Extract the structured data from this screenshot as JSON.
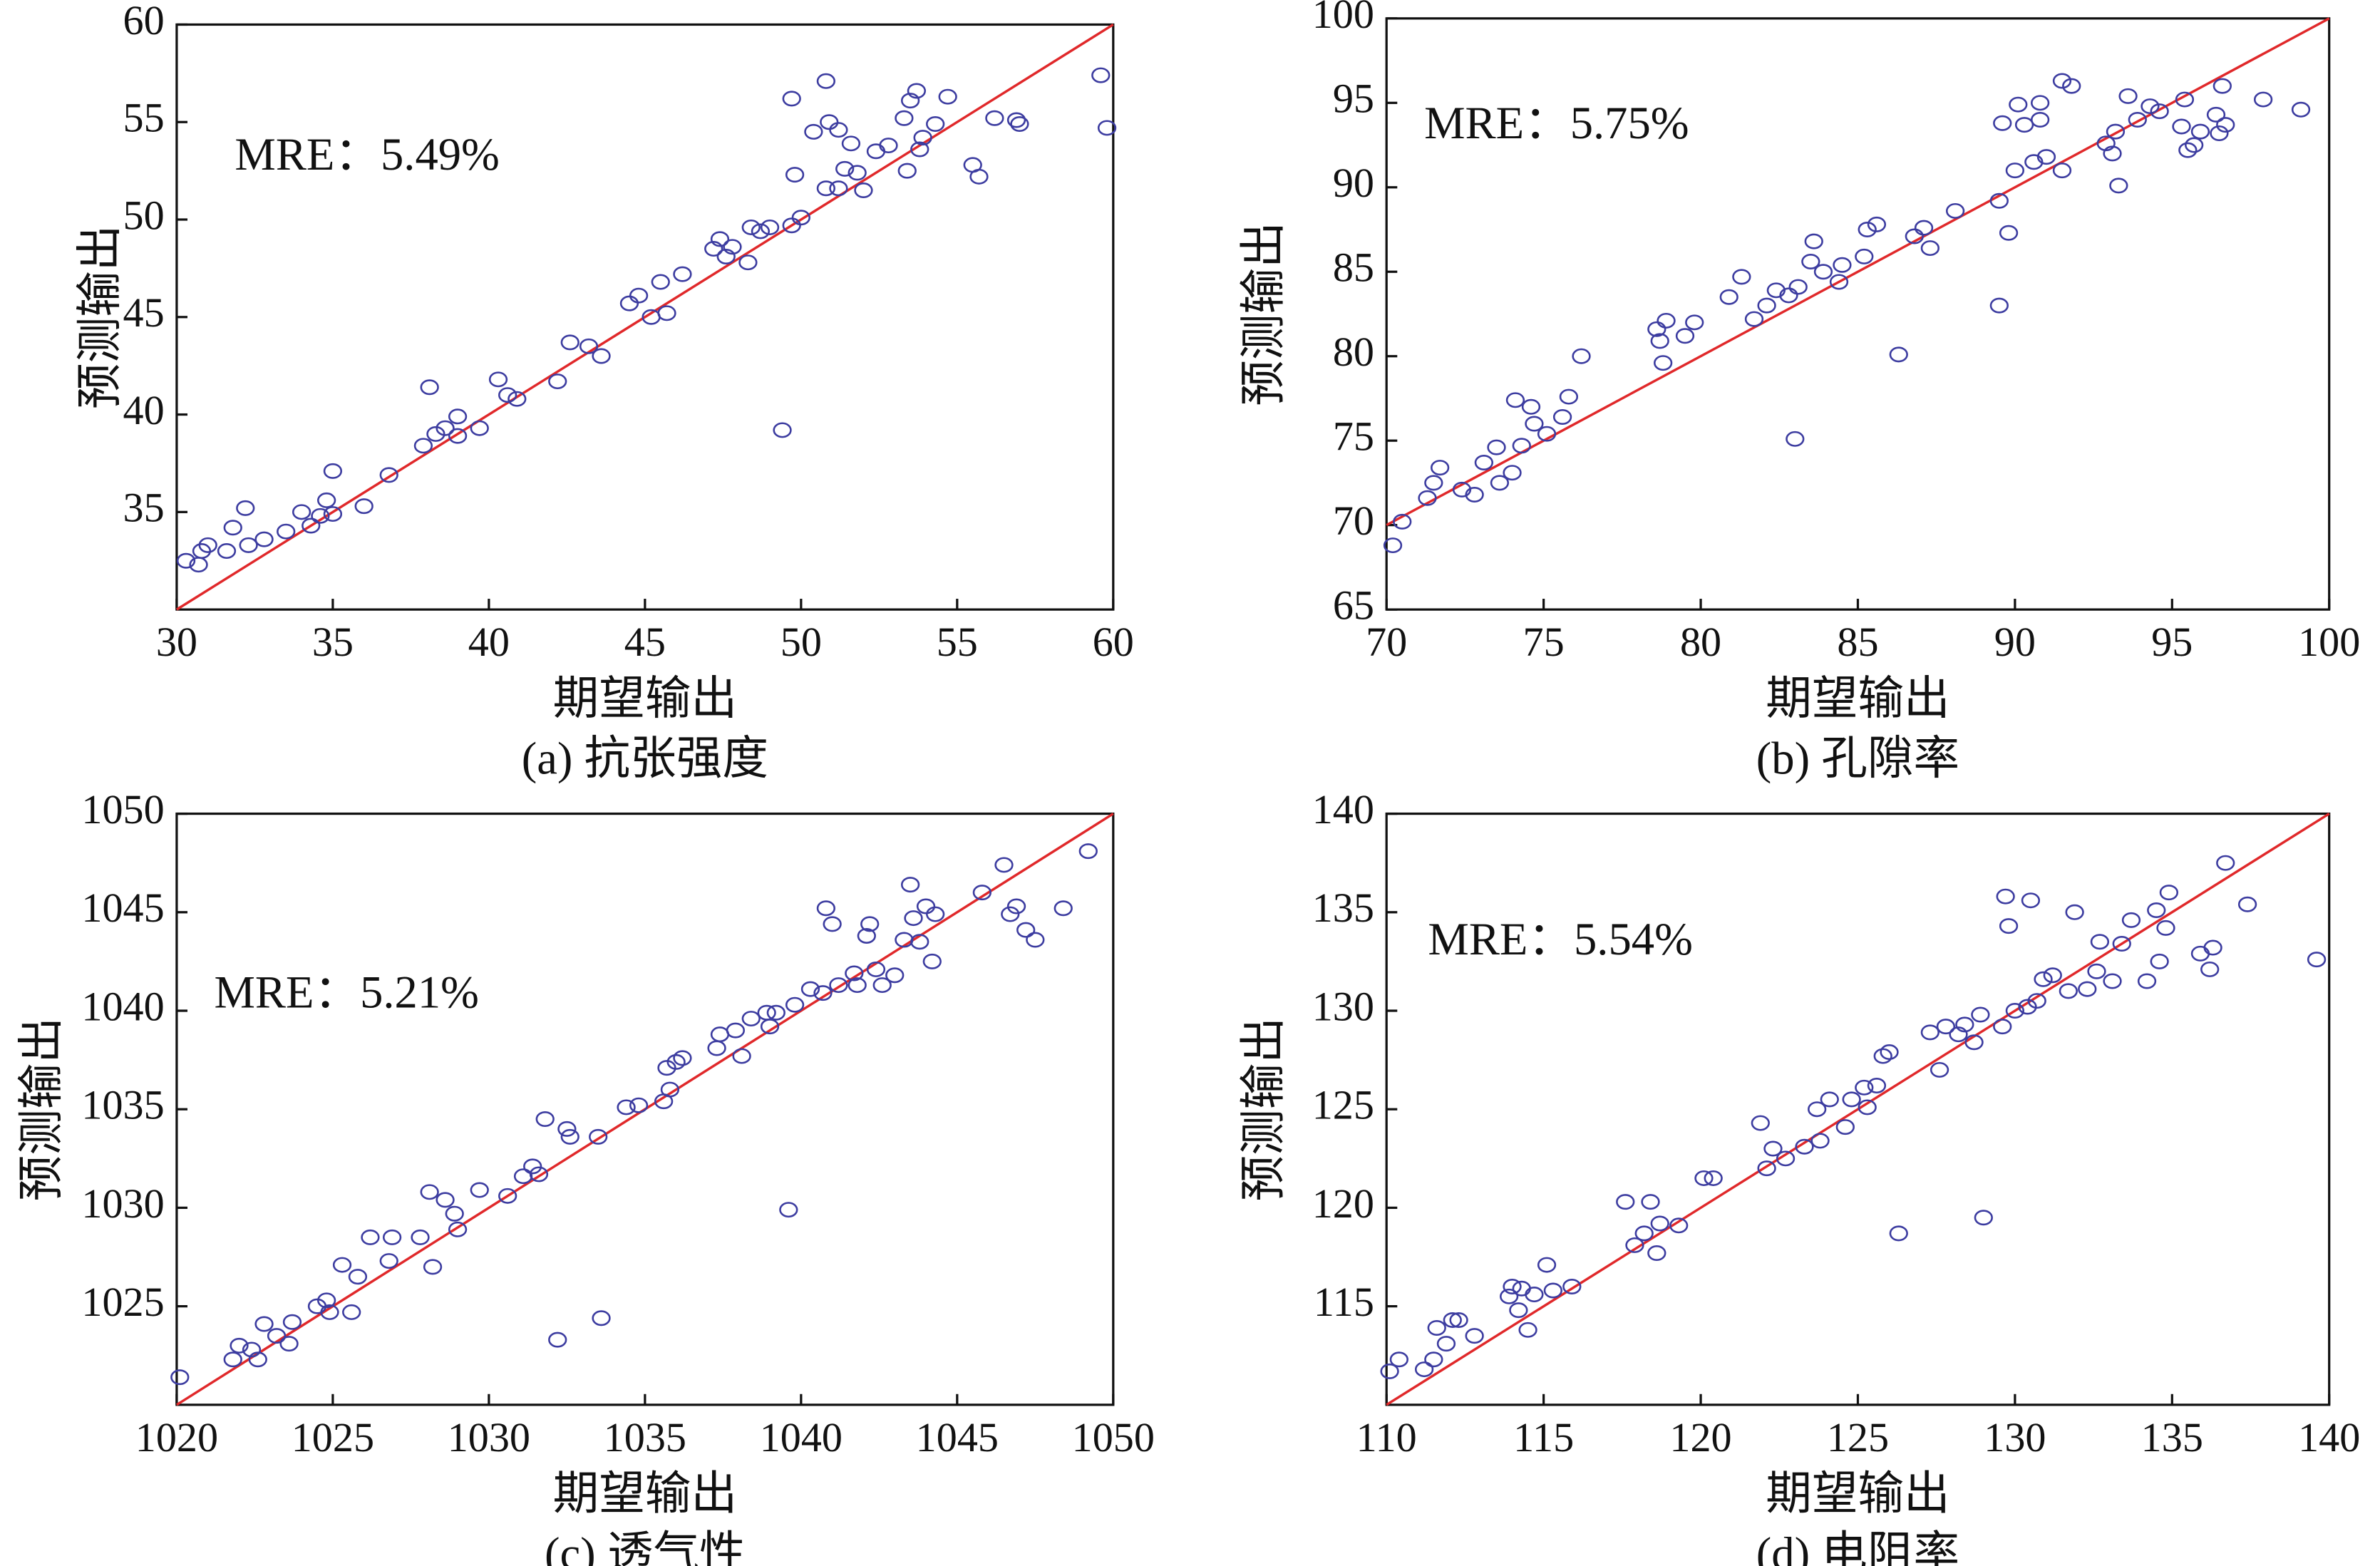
{
  "chart_data": [
    {
      "type": "scatter",
      "title": "(a) 抗张强度",
      "annotation": "MRE：5.49%",
      "x_label": "期望输出",
      "y_label": "预测输出",
      "xlim": [
        30,
        60
      ],
      "ylim": [
        30,
        60
      ],
      "xticks": [
        30,
        35,
        40,
        45,
        50,
        55,
        60
      ],
      "yticks": [
        35,
        40,
        45,
        50,
        55,
        60
      ],
      "color": "#3c3ca0",
      "identity_line": true,
      "line_color": "#e0282a",
      "x": [
        30.3,
        30.8,
        31,
        30.7,
        31.6,
        31.8,
        32.2,
        32.3,
        32.8,
        33.5,
        34,
        34.3,
        34.6,
        34.8,
        35,
        35,
        36,
        36.8,
        37.9,
        38.1,
        38.3,
        38.6,
        39,
        39,
        39.7,
        40.3,
        40.6,
        40.9,
        42.2,
        42.6,
        43.2,
        43.6,
        44.5,
        44.8,
        45.2,
        45.5,
        45.7,
        46.2,
        47.2,
        47.4,
        47.6,
        47.8,
        48.3,
        48.4,
        48.7,
        49,
        49.4,
        49.7,
        49.8,
        50,
        49.7,
        50.4,
        50.8,
        50.8,
        50.9,
        51.2,
        51.2,
        51.4,
        51.6,
        51.8,
        52,
        52.4,
        52.8,
        53.3,
        53.4,
        53.5,
        53.7,
        53.8,
        53.9,
        54.3,
        54.7,
        55.5,
        55.7,
        56.2,
        56.9,
        57,
        59.6,
        59.8
      ],
      "values": [
        32.5,
        33,
        33.3,
        32.3,
        33,
        34.2,
        35.2,
        33.3,
        33.6,
        34,
        35,
        34.3,
        34.8,
        35.6,
        37.1,
        34.9,
        35.3,
        36.9,
        38.4,
        41.4,
        39,
        39.3,
        39.9,
        38.9,
        39.3,
        41.8,
        41,
        40.8,
        41.7,
        43.7,
        43.5,
        43,
        45.7,
        46.1,
        45,
        46.8,
        45.2,
        47.2,
        48.5,
        49,
        48.1,
        48.6,
        47.8,
        49.6,
        49.4,
        49.6,
        39.2,
        49.7,
        52.3,
        50.1,
        56.2,
        54.5,
        57.1,
        51.6,
        55,
        51.6,
        54.6,
        52.6,
        53.9,
        52.4,
        51.5,
        53.5,
        53.8,
        55.2,
        52.5,
        56.1,
        56.6,
        53.6,
        54.2,
        54.9,
        56.3,
        52.8,
        52.2,
        55.2,
        55.1,
        54.9,
        57.4,
        54.7
      ]
    },
    {
      "type": "scatter",
      "title": "(b) 孔隙率",
      "annotation": "MRE：5.75%",
      "x_label": "期望输出",
      "y_label": "预测输出",
      "xlim": [
        70,
        100
      ],
      "ylim": [
        65,
        100
      ],
      "xticks": [
        70,
        75,
        80,
        85,
        90,
        95,
        100
      ],
      "yticks": [
        65,
        70,
        75,
        80,
        85,
        90,
        95,
        100
      ],
      "color": "#3c3ca0",
      "identity_line": true,
      "line_color": "#e0282a",
      "x": [
        70.2,
        70.5,
        71.3,
        71.5,
        71.7,
        72.4,
        72.8,
        73.1,
        73.5,
        73.6,
        74,
        74.1,
        74.3,
        74.6,
        74.7,
        75.1,
        75.6,
        75.8,
        76.2,
        78.6,
        78.7,
        78.8,
        78.9,
        79.5,
        79.8,
        80.9,
        81.3,
        81.7,
        82.1,
        82.4,
        82.8,
        83.1,
        83.5,
        83.6,
        83.9,
        84.4,
        84.5,
        85.2,
        85.3,
        85.6,
        86.3,
        86.8,
        87.1,
        87.3,
        88.1,
        89.5,
        89.5,
        89.6,
        89.8,
        90,
        90.1,
        90.3,
        90.6,
        90.8,
        90.8,
        91,
        91.5,
        91.5,
        91.8,
        92.9,
        93.1,
        93.2,
        93.3,
        93.6,
        93.9,
        94.3,
        94.6,
        95.3,
        95.4,
        95.5,
        95.7,
        95.9,
        96.4,
        96.5,
        96.6,
        96.7,
        97.9,
        99.1,
        83
      ],
      "values": [
        68.8,
        70.2,
        71.6,
        72.5,
        73.4,
        72.1,
        71.8,
        73.7,
        74.6,
        72.5,
        73.1,
        77.4,
        74.7,
        77,
        76,
        75.4,
        76.4,
        77.6,
        80,
        81.6,
        80.9,
        79.6,
        82.1,
        81.2,
        82,
        83.5,
        84.7,
        82.2,
        83,
        83.9,
        83.6,
        84.1,
        85.6,
        86.8,
        85,
        84.4,
        85.4,
        85.9,
        87.5,
        87.8,
        80.1,
        87.1,
        87.6,
        86.4,
        88.6,
        83,
        89.2,
        93.8,
        87.3,
        91,
        94.9,
        93.7,
        91.5,
        94,
        95,
        91.8,
        91,
        96.3,
        96,
        92.6,
        92,
        93.3,
        90.1,
        95.4,
        94,
        94.8,
        94.5,
        93.6,
        95.2,
        92.2,
        92.5,
        93.3,
        94.3,
        93.2,
        96,
        93.7,
        95.2,
        94.6,
        75.1
      ]
    },
    {
      "type": "scatter",
      "title": "(c) 透气性",
      "annotation": "MRE：5.21%",
      "x_label": "期望输出",
      "y_label": "预测输出",
      "xlim": [
        1020,
        1050
      ],
      "ylim": [
        1020,
        1050
      ],
      "xticks": [
        1020,
        1025,
        1030,
        1035,
        1040,
        1045,
        1050
      ],
      "yticks": [
        1025,
        1030,
        1035,
        1040,
        1045,
        1050
      ],
      "color": "#3c3ca0",
      "identity_line": true,
      "line_color": "#e0282a",
      "x": [
        1020.1,
        1021.8,
        1022,
        1022.4,
        1022.6,
        1022.8,
        1023.2,
        1023.6,
        1023.7,
        1024.5,
        1024.8,
        1024.9,
        1025.3,
        1025.6,
        1025.8,
        1026.2,
        1026.8,
        1026.9,
        1027.8,
        1028.1,
        1028.2,
        1028.6,
        1028.9,
        1029,
        1029.7,
        1030.6,
        1031.1,
        1031.4,
        1031.6,
        1031.8,
        1032.2,
        1032.5,
        1032.6,
        1033.5,
        1033.6,
        1034.4,
        1034.8,
        1035.6,
        1035.7,
        1035.8,
        1036,
        1036.2,
        1037.3,
        1037.4,
        1037.9,
        1038.1,
        1038.4,
        1038.9,
        1039,
        1039.2,
        1039.6,
        1039.8,
        1040.3,
        1040.7,
        1040.8,
        1041,
        1041.2,
        1041.7,
        1041.8,
        1042.1,
        1042.2,
        1042.4,
        1042.6,
        1043,
        1043.3,
        1043.5,
        1043.6,
        1043.8,
        1044,
        1044.2,
        1044.3,
        1045.8,
        1046.5,
        1046.7,
        1046.9,
        1047.2,
        1047.5,
        1048.4,
        1049.2
      ],
      "values": [
        1021.4,
        1022.3,
        1023,
        1022.8,
        1022.3,
        1024.1,
        1023.5,
        1023.1,
        1024.2,
        1025,
        1025.3,
        1024.7,
        1027.1,
        1024.7,
        1026.5,
        1028.5,
        1027.3,
        1028.5,
        1028.5,
        1030.8,
        1027,
        1030.4,
        1029.7,
        1028.9,
        1030.9,
        1030.6,
        1031.6,
        1032.1,
        1031.7,
        1034.5,
        1023.3,
        1034,
        1033.6,
        1033.6,
        1024.4,
        1035.1,
        1035.2,
        1035.4,
        1037.1,
        1036,
        1037.4,
        1037.6,
        1038.1,
        1038.8,
        1039,
        1037.7,
        1039.6,
        1039.9,
        1039.2,
        1039.9,
        1029.9,
        1040.3,
        1041.1,
        1040.9,
        1045.2,
        1044.4,
        1041.3,
        1041.9,
        1041.3,
        1043.8,
        1044.4,
        1042.1,
        1041.3,
        1041.8,
        1043.6,
        1046.4,
        1044.7,
        1043.5,
        1045.3,
        1042.5,
        1044.9,
        1046,
        1047.4,
        1044.9,
        1045.3,
        1044.1,
        1043.6,
        1045.2,
        1048.1
      ]
    },
    {
      "type": "scatter",
      "title": "(d) 电阻率",
      "annotation": "MRE：5.54%",
      "x_label": "期望输出",
      "y_label": "预测输出",
      "xlim": [
        110,
        140
      ],
      "ylim": [
        110,
        140
      ],
      "xticks": [
        110,
        115,
        120,
        125,
        130,
        135,
        140
      ],
      "yticks": [
        115,
        120,
        125,
        130,
        135,
        140
      ],
      "color": "#3c3ca0",
      "identity_line": true,
      "line_color": "#e0282a",
      "x": [
        110.1,
        110.4,
        111.2,
        111.5,
        111.6,
        111.9,
        112.1,
        112.3,
        112.8,
        113.9,
        114,
        114.2,
        114.3,
        114.5,
        114.7,
        115.1,
        115.3,
        115.9,
        117.6,
        117.9,
        118.2,
        118.4,
        118.6,
        118.7,
        119.3,
        120.1,
        120.4,
        121.9,
        122.1,
        122.3,
        122.7,
        123.3,
        123.7,
        123.8,
        124.1,
        124.6,
        124.8,
        125.2,
        125.3,
        125.6,
        125.8,
        126,
        126.3,
        127.3,
        127.6,
        127.8,
        128.2,
        128.4,
        128.7,
        128.9,
        129,
        129.6,
        129.7,
        129.8,
        130,
        130.4,
        130.5,
        130.7,
        130.9,
        131.2,
        131.7,
        131.9,
        132.3,
        132.6,
        132.7,
        133.1,
        133.4,
        133.7,
        134.2,
        134.5,
        134.6,
        134.8,
        134.9,
        135.9,
        136.2,
        136.3,
        136.7,
        137.4,
        139.6
      ],
      "values": [
        111.7,
        112.3,
        111.8,
        112.3,
        113.9,
        113.1,
        114.3,
        114.3,
        113.5,
        115.5,
        116,
        114.8,
        115.9,
        113.8,
        115.6,
        117.1,
        115.8,
        116,
        120.3,
        118.1,
        118.7,
        120.3,
        117.7,
        119.2,
        119.1,
        121.5,
        121.5,
        124.3,
        122,
        123,
        122.5,
        123.1,
        125,
        123.4,
        125.5,
        124.1,
        125.5,
        126.1,
        125.1,
        126.2,
        127.7,
        127.9,
        118.7,
        128.9,
        127,
        129.2,
        128.8,
        129.3,
        128.4,
        129.8,
        119.5,
        129.2,
        135.8,
        134.3,
        130,
        130.2,
        135.6,
        130.5,
        131.6,
        131.8,
        131,
        135,
        131.1,
        132,
        133.5,
        131.5,
        133.4,
        134.6,
        131.5,
        135.1,
        132.5,
        134.2,
        136,
        132.9,
        132.1,
        133.2,
        137.5,
        135.4,
        132.6
      ]
    }
  ]
}
